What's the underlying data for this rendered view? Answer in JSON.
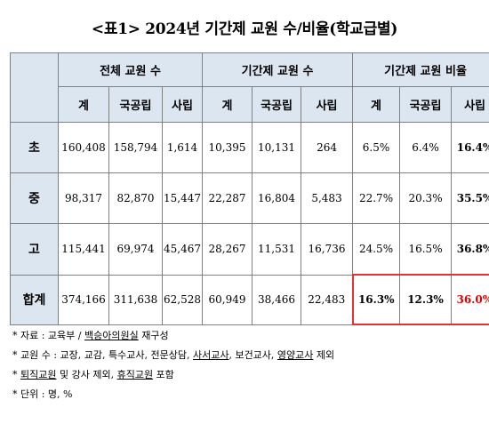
{
  "title": "<표1> 2024년 기간제 교원 수/비율(학교급별)",
  "header": {
    "group1": "전체 교원 수",
    "group2": "기간제 교원 수",
    "group3": "기간제 교원 비율",
    "sub": [
      "계",
      "국공립",
      "사립",
      "계",
      "국공립",
      "사립",
      "계",
      "국공립",
      "사립"
    ]
  },
  "rows": [
    {
      "label": "초",
      "cells": [
        "160,408",
        "158,794",
        "1,614",
        "10,395",
        "10,131",
        "264",
        "6.5%",
        "6.4%",
        "16.4%"
      ]
    },
    {
      "label": "중",
      "cells": [
        "98,317",
        "82,870",
        "15,447",
        "22,287",
        "16,804",
        "5,483",
        "22.7%",
        "20.3%",
        "35.5%"
      ]
    },
    {
      "label": "고",
      "cells": [
        "115,441",
        "69,974",
        "45,467",
        "28,267",
        "11,531",
        "16,736",
        "24.5%",
        "16.5%",
        "36.8%"
      ]
    },
    {
      "label": "합계",
      "cells": [
        "374,166",
        "311,638",
        "62,528",
        "60,949",
        "38,466",
        "22,483",
        "16.3%",
        "12.3%",
        "36.0%"
      ]
    }
  ],
  "notes": {
    "n1_prefix": "* 자료 : 교육부 / ",
    "n1_ul": "백승아의원실",
    "n1_suffix": " 재구성",
    "n2_a": "* 교원 수 : 교장, 교감, 특수교사, 전문상담, ",
    "n2_ul1": "사서교사",
    "n2_b": ", 보건교사, ",
    "n2_ul2": "영양교사",
    "n2_c": " 제외",
    "n3_a": "* ",
    "n3_ul1": "퇴직교원",
    "n3_b": " 및 강사 제외, ",
    "n3_ul2": "휴직교원",
    "n3_c": " 포함",
    "n4": "* 단위 : 명, %"
  },
  "colors": {
    "header_bg": "#dce6f1",
    "highlight_border": "#e83030",
    "highlight_text": "#e00000"
  }
}
